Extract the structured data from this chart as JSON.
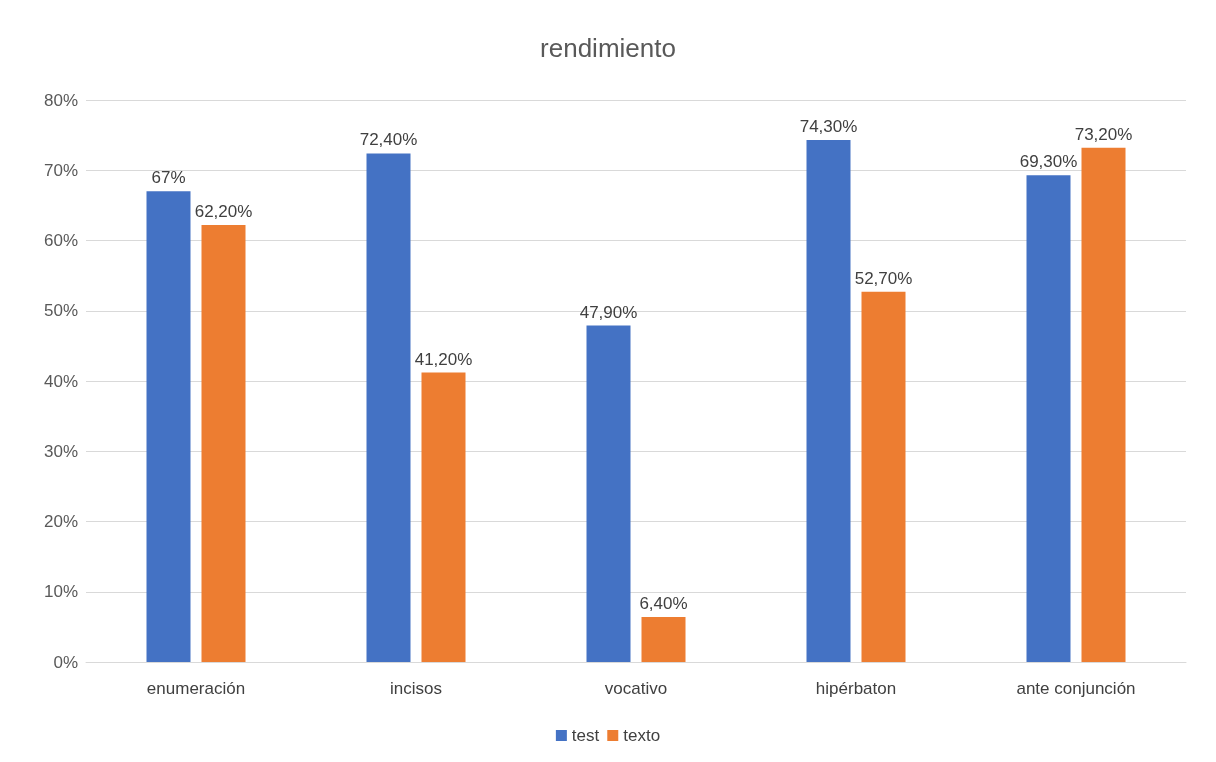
{
  "chart_data": {
    "type": "bar",
    "title": "rendimiento",
    "categories": [
      "enumeración",
      "incisos",
      "vocativo",
      "hipérbaton",
      "ante conjunción"
    ],
    "series": [
      {
        "name": "test",
        "color": "#4472c4",
        "values": [
          67,
          72.4,
          47.9,
          74.3,
          69.3
        ],
        "value_labels": [
          "67%",
          "72,40%",
          "47,90%",
          "74,30%",
          "69,30%"
        ]
      },
      {
        "name": "texto",
        "color": "#ed7d31",
        "values": [
          62.2,
          41.2,
          6.4,
          52.7,
          73.2
        ],
        "value_labels": [
          "62,20%",
          "41,20%",
          "6,40%",
          "52,70%",
          "73,20%"
        ]
      }
    ],
    "ylim": [
      0,
      80
    ],
    "yticks": [
      {
        "value": 0,
        "label": "0%"
      },
      {
        "value": 10,
        "label": "10%"
      },
      {
        "value": 20,
        "label": "20%"
      },
      {
        "value": 30,
        "label": "30%"
      },
      {
        "value": 40,
        "label": "40%"
      },
      {
        "value": 50,
        "label": "50%"
      },
      {
        "value": 60,
        "label": "60%"
      },
      {
        "value": 70,
        "label": "70%"
      },
      {
        "value": 80,
        "label": "80%"
      }
    ],
    "grid": "y",
    "legend": "bottom"
  }
}
